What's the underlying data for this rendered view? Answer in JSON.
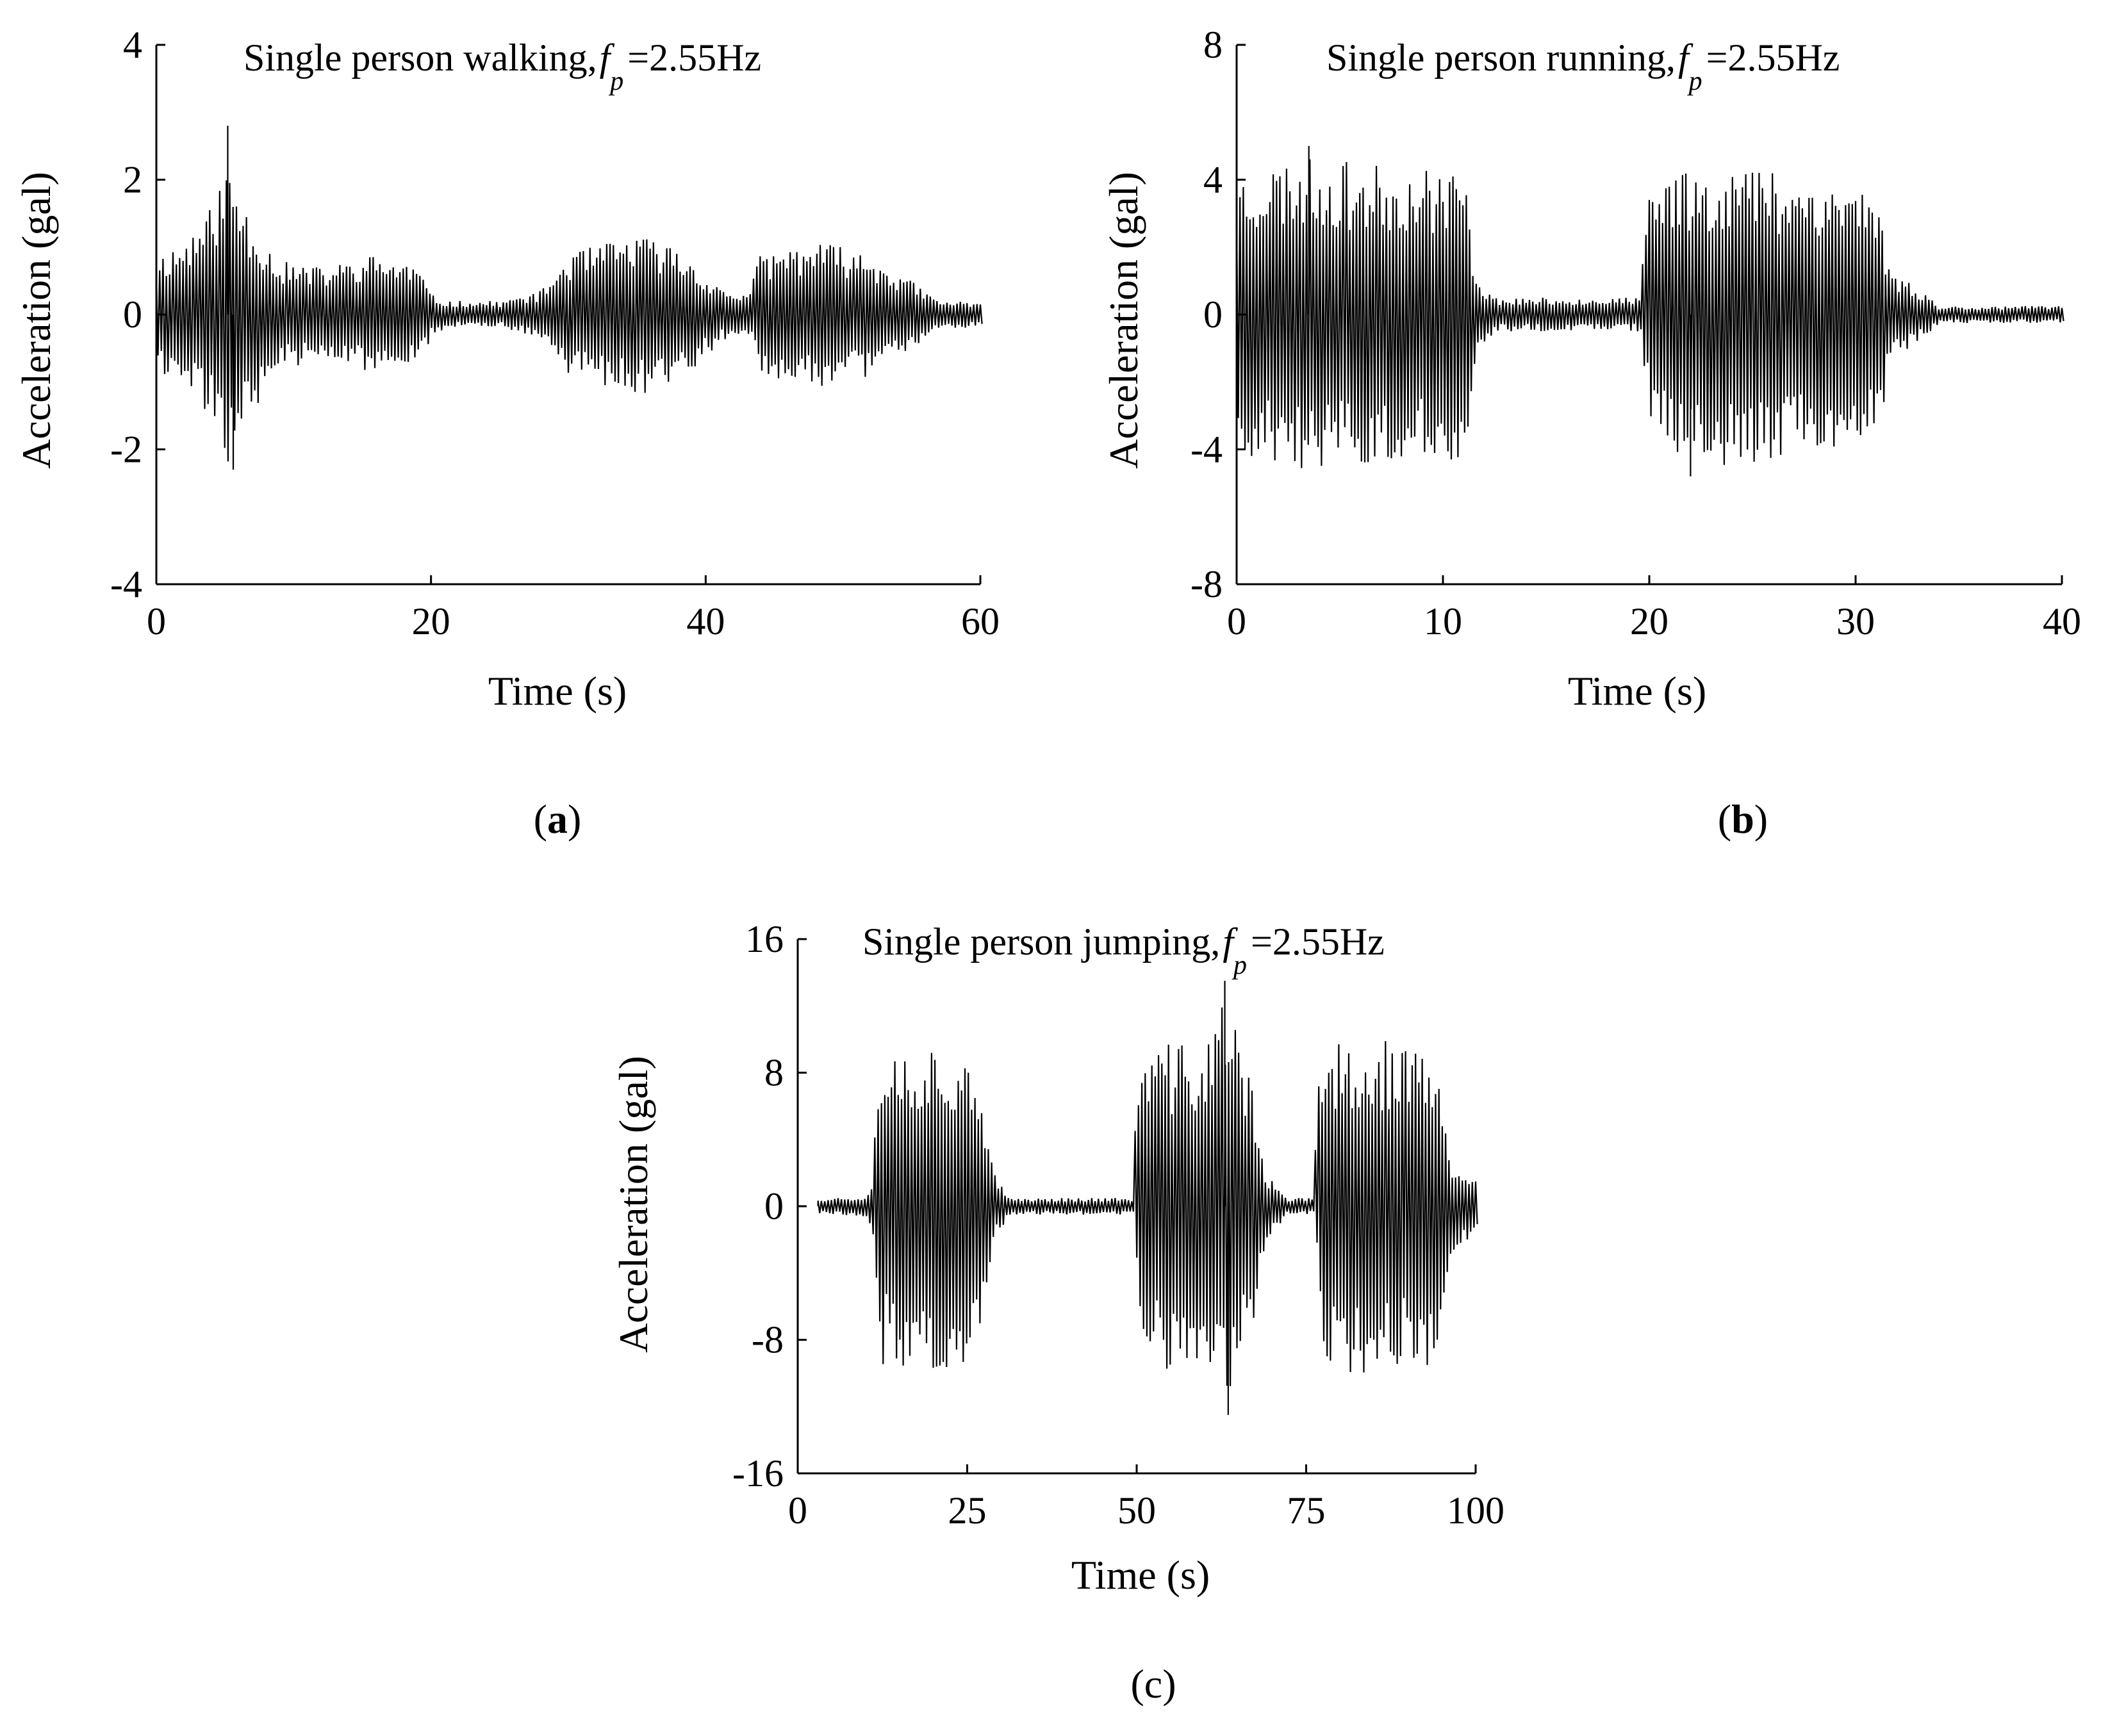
{
  "panels": [
    {
      "label_open": "(",
      "label_letter": "a",
      "label_close": ")"
    },
    {
      "label_open": "(",
      "label_letter": "b",
      "label_close": ")"
    },
    {
      "label_full": "(c)"
    }
  ],
  "colors": {
    "signal": "#000000",
    "axes": "#000000",
    "background": "#ffffff"
  },
  "chart_data": [
    {
      "type": "line",
      "title": "Single person walking, f_p =2.55Hz",
      "title_prefix": "Single person walking,",
      "title_f": "f",
      "title_sub": "p",
      "title_suffix": "=2.55Hz",
      "xlabel": "Time (s)",
      "ylabel": "Acceleration (gal)",
      "xlim": [
        0,
        60
      ],
      "ylim": [
        -4,
        4
      ],
      "xticks": [
        0,
        20,
        40,
        60
      ],
      "xtick_labels": [
        "0",
        "20",
        "40",
        "60"
      ],
      "yticks": [
        -4,
        -2,
        0,
        2,
        4
      ],
      "ytick_labels": [
        "-4",
        "-2",
        "0",
        "2",
        "4"
      ],
      "grid": false,
      "series": [
        {
          "name": "acceleration",
          "sampling": "vibration envelope (2.55 Hz excitation)",
          "duration": 60
        }
      ],
      "envelope_points": [
        [
          0,
          0.9
        ],
        [
          2,
          1.1
        ],
        [
          4,
          1.6
        ],
        [
          5.2,
          2.3
        ],
        [
          7,
          1.4
        ],
        [
          9,
          0.8
        ],
        [
          12,
          0.7
        ],
        [
          16,
          0.9
        ],
        [
          19,
          0.75
        ],
        [
          20,
          0.3
        ],
        [
          21,
          0.2
        ],
        [
          25,
          0.2
        ],
        [
          28,
          0.35
        ],
        [
          30,
          0.9
        ],
        [
          35,
          1.2
        ],
        [
          38,
          1.0
        ],
        [
          41,
          0.4
        ],
        [
          43,
          0.3
        ],
        [
          44,
          0.9
        ],
        [
          48,
          1.1
        ],
        [
          52,
          0.9
        ],
        [
          55,
          0.5
        ],
        [
          57,
          0.2
        ],
        [
          60,
          0.2
        ]
      ],
      "peak_annotations": [
        {
          "t": 5.2,
          "value": 2.8
        },
        {
          "t": 5.6,
          "value": -2.3
        }
      ]
    },
    {
      "type": "line",
      "title": "Single person running, f_p =2.55Hz",
      "title_prefix": "Single person running,",
      "title_f": "f",
      "title_sub": "p",
      "title_suffix": "=2.55Hz",
      "xlabel": "Time (s)",
      "ylabel": "Acceleration (gal)",
      "xlim": [
        0,
        40
      ],
      "ylim": [
        -8,
        8
      ],
      "xticks": [
        0,
        10,
        20,
        30,
        40
      ],
      "xtick_labels": [
        "0",
        "10",
        "20",
        "30",
        "40"
      ],
      "yticks": [
        -8,
        -4,
        0,
        4,
        8
      ],
      "ytick_labels": [
        "-8",
        "-4",
        "0",
        "4",
        "8"
      ],
      "grid": false,
      "series": [
        {
          "name": "acceleration",
          "sampling": "vibration envelope (2.55 Hz excitation)",
          "duration": 40
        }
      ],
      "envelope_points": [
        [
          0,
          4.3
        ],
        [
          3,
          4.7
        ],
        [
          7,
          4.4
        ],
        [
          11,
          4.4
        ],
        [
          11.6,
          1.2
        ],
        [
          12.5,
          0.5
        ],
        [
          19.5,
          0.5
        ],
        [
          20,
          3.5
        ],
        [
          21,
          4.4
        ],
        [
          25,
          4.5
        ],
        [
          29,
          4.0
        ],
        [
          31,
          3.9
        ],
        [
          31.6,
          1.4
        ],
        [
          33.5,
          0.6
        ],
        [
          34,
          0.25
        ],
        [
          40,
          0.25
        ]
      ],
      "peak_annotations": [
        {
          "t": 3.5,
          "value": 5.0
        },
        {
          "t": 22,
          "value": -4.8
        }
      ]
    },
    {
      "type": "line",
      "title": "Single person jumping, f_p =2.55Hz",
      "title_prefix": "Single person jumping,",
      "title_f": "f",
      "title_sub": "p",
      "title_suffix": "=2.55Hz",
      "xlabel": "Time (s)",
      "ylabel": "Acceleration (gal)",
      "xlim": [
        0,
        100
      ],
      "ylim": [
        -16,
        16
      ],
      "xticks": [
        0,
        25,
        50,
        75,
        100
      ],
      "xtick_labels": [
        "0",
        "25",
        "50",
        "75",
        "100"
      ],
      "yticks": [
        -16,
        -8,
        0,
        8,
        16
      ],
      "ytick_labels": [
        "-16",
        "-8",
        "0",
        "8",
        "16"
      ],
      "grid": false,
      "series": [
        {
          "name": "acceleration",
          "sampling": "vibration envelope (2.55 Hz excitation)",
          "duration": 100
        }
      ],
      "envelope_points": [
        [
          3,
          0.5
        ],
        [
          10,
          0.6
        ],
        [
          11,
          2
        ],
        [
          12,
          9.5
        ],
        [
          20,
          9.9
        ],
        [
          26,
          10
        ],
        [
          27,
          6
        ],
        [
          29,
          2
        ],
        [
          31,
          0.5
        ],
        [
          49.5,
          0.5
        ],
        [
          50,
          8
        ],
        [
          52,
          9.8
        ],
        [
          60,
          9.8
        ],
        [
          63,
          13
        ],
        [
          65,
          10
        ],
        [
          67,
          8
        ],
        [
          69,
          2
        ],
        [
          72,
          0.5
        ],
        [
          76,
          0.5
        ],
        [
          77,
          9
        ],
        [
          80,
          10
        ],
        [
          88,
          10
        ],
        [
          94,
          9.5
        ],
        [
          96,
          3
        ],
        [
          100,
          1.5
        ]
      ],
      "peak_annotations": [
        {
          "t": 63,
          "value": 13.5
        },
        {
          "t": 63.5,
          "value": -12.5
        }
      ]
    }
  ]
}
